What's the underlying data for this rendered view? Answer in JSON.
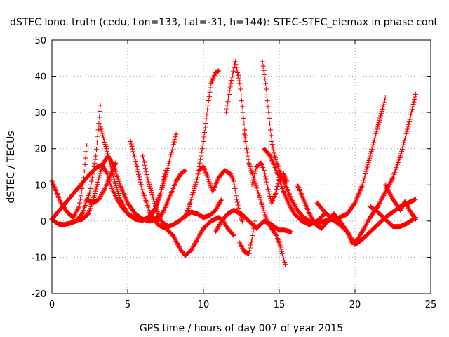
{
  "chart_data": {
    "type": "scatter",
    "title": "dSTEC Iono. truth (cedu, Lon=133, Lat=-31, h=144): STEC-STEC_elemax in phase cont",
    "xlabel": "GPS time / hours of day 007 of year 2015",
    "ylabel": "dSTEC  / TECUs",
    "xlim": [
      0,
      25
    ],
    "ylim": [
      -20,
      50
    ],
    "xticks": [
      0,
      5,
      10,
      15,
      20,
      25
    ],
    "yticks": [
      -20,
      -10,
      0,
      10,
      20,
      30,
      40,
      50
    ],
    "grid": true,
    "marker": "+",
    "color": "#ff0000",
    "series": [
      {
        "x": [
          0,
          0.3,
          0.6,
          1.0,
          1.4,
          1.8,
          2.1,
          2.3
        ],
        "y": [
          11,
          8,
          5,
          2.5,
          1,
          4,
          12,
          21
        ]
      },
      {
        "x": [
          0,
          0.4,
          0.8,
          1.2,
          1.6,
          2.0,
          2.5,
          2.9,
          3.1,
          3.2
        ],
        "y": [
          0.5,
          -0.8,
          -1,
          -0.6,
          0,
          2,
          8,
          18,
          27,
          32
        ]
      },
      {
        "x": [
          0,
          0.5,
          1.0,
          1.5,
          2.0,
          2.5,
          3.0,
          3.3,
          3.6,
          3.8,
          4.0,
          4.3,
          4.6,
          5.0,
          5.5,
          6.0,
          6.5,
          6.8,
          7.2,
          7.6,
          7.9,
          8.2
        ],
        "y": [
          0.5,
          3,
          5.5,
          8,
          10.5,
          13,
          15,
          15.5,
          13.5,
          11,
          8.5,
          6,
          4,
          2,
          0.5,
          0.2,
          1.5,
          3.5,
          8,
          14,
          19,
          24
        ]
      },
      {
        "x": [
          1.6,
          2.0,
          2.4,
          2.8,
          3.1,
          3.4,
          3.7,
          4.0,
          4.5,
          5.0,
          5.5,
          6.0,
          6.5,
          6.8,
          7.0
        ],
        "y": [
          0.3,
          0.5,
          2,
          7,
          12,
          16,
          18,
          16,
          10,
          5,
          2,
          0.5,
          0,
          0.5,
          1.5
        ]
      },
      {
        "x": [
          2.3,
          2.7,
          3.1,
          3.5,
          3.9,
          4.2
        ],
        "y": [
          6,
          5,
          6,
          9,
          13,
          16
        ]
      },
      {
        "x": [
          3.2,
          3.6,
          4.0,
          4.5,
          5.0,
          5.6,
          6.0,
          6.4,
          6.8,
          7.2,
          7.5
        ],
        "y": [
          26,
          20,
          13,
          6,
          2,
          0.5,
          0.3,
          0.8,
          3,
          8,
          14
        ]
      },
      {
        "x": [
          5.2,
          5.6,
          6.0,
          6.5,
          7.0,
          7.5,
          8.0,
          8.5,
          8.8,
          9.2,
          9.6,
          10.0,
          10.5,
          11.0,
          11.3,
          11.6,
          12.0
        ],
        "y": [
          22,
          15,
          8,
          2,
          -1,
          -2,
          -4,
          -8,
          -9.5,
          -8,
          -5,
          -2,
          0,
          1,
          0,
          -2,
          -4
        ]
      },
      {
        "x": [
          6.0,
          6.3,
          6.7,
          7.0,
          7.3,
          7.7,
          8.0,
          8.4,
          8.8,
          9.2,
          9.6,
          10.0,
          10.4,
          10.8,
          11.2
        ],
        "y": [
          18,
          12,
          6,
          2,
          -0.5,
          -1.5,
          -1,
          0,
          1.5,
          2.5,
          2,
          1,
          1.5,
          3,
          6
        ]
      },
      {
        "x": [
          7.0,
          7.4,
          7.8,
          8.2,
          8.5,
          8.8
        ],
        "y": [
          0,
          3,
          7,
          11,
          13,
          14
        ]
      },
      {
        "x": [
          8.8,
          9.2,
          9.6,
          10.0,
          10.3,
          10.5,
          10.8,
          11.0
        ],
        "y": [
          1,
          6,
          12,
          22,
          32,
          38,
          41,
          41.5
        ]
      },
      {
        "x": [
          9.7,
          10.0,
          10.3,
          10.6,
          11.0,
          11.4,
          11.8,
          12.0,
          12.2,
          12.4,
          12.6
        ],
        "y": [
          14,
          15,
          12,
          8,
          12,
          14,
          13,
          11,
          6,
          2,
          -0.5
        ]
      },
      {
        "x": [
          10.8,
          11.2,
          11.6,
          12.0,
          12.5,
          13.0,
          13.5,
          14.0,
          14.5,
          15.0,
          15.3,
          15.8
        ],
        "y": [
          -3,
          0,
          2,
          3,
          2,
          0,
          -2,
          0,
          -1,
          -2.5,
          -2.5,
          -3
        ]
      },
      {
        "x": [
          11.5,
          11.8,
          12.1,
          12.4,
          12.6,
          12.8
        ],
        "y": [
          30,
          38,
          44,
          38,
          30,
          22
        ]
      },
      {
        "x": [
          12.4,
          12.7,
          13.0,
          13.2,
          13.4
        ],
        "y": [
          -6,
          -8.5,
          -9,
          -5,
          0
        ]
      },
      {
        "x": [
          12.7,
          13.0,
          13.3,
          13.6,
          13.9,
          14.2,
          14.5,
          14.8,
          15.0,
          15.2,
          15.4
        ],
        "y": [
          24,
          16,
          12,
          8,
          4,
          0,
          -2,
          -4,
          -6,
          -9,
          -12
        ]
      },
      {
        "x": [
          13.2,
          13.5,
          13.8,
          14.0,
          14.2,
          14.5,
          14.8,
          15.0,
          15.3,
          15.5
        ],
        "y": [
          10,
          15,
          16,
          14,
          10,
          5,
          8,
          12,
          13,
          11
        ]
      },
      {
        "x": [
          13.9,
          14.1,
          14.3,
          14.5,
          14.7,
          15.0,
          15.4,
          15.8,
          16.2,
          16.6,
          17.0,
          17.5,
          18.0,
          18.5,
          19.0,
          19.5,
          20.0,
          20.5,
          21.0,
          21.5,
          22.0
        ],
        "y": [
          44,
          38,
          30,
          22,
          18,
          14,
          10,
          6,
          3,
          1,
          0,
          -0.5,
          0,
          0.5,
          1,
          2,
          5,
          10,
          18,
          26,
          34
        ]
      },
      {
        "x": [
          14.0,
          14.4,
          14.8,
          15.2,
          15.6,
          16.0,
          16.5,
          17.0,
          17.5,
          18.0
        ],
        "y": [
          20,
          18,
          14,
          9,
          5,
          2,
          0,
          -1,
          0,
          2
        ]
      },
      {
        "x": [
          16.2,
          16.6,
          17.0,
          17.4,
          17.8,
          18.2,
          18.6,
          19.0,
          19.5,
          19.8,
          20.2,
          20.6,
          21.0,
          21.5,
          22.0,
          22.5,
          23.0,
          23.5,
          24.0
        ],
        "y": [
          10,
          6,
          2,
          -1,
          -2,
          0,
          2,
          0,
          -3,
          -6,
          -5,
          -2,
          1,
          4,
          8,
          12,
          18,
          26,
          35
        ]
      },
      {
        "x": [
          17.5,
          18.0,
          18.5,
          19.0,
          19.5,
          20.0,
          20.5,
          21.0,
          21.5,
          22.0,
          22.5,
          23.0,
          23.5,
          24.0
        ],
        "y": [
          5,
          2.5,
          0.5,
          -1,
          -3,
          -6.5,
          -5,
          -3,
          -1,
          1,
          2.5,
          4,
          5,
          6
        ]
      },
      {
        "x": [
          21.0,
          21.5,
          22.0,
          22.5,
          23.0,
          23.5,
          24.0
        ],
        "y": [
          4,
          2.5,
          0.5,
          -1.5,
          -1.5,
          -0.5,
          1
        ]
      },
      {
        "x": [
          22.0,
          22.5,
          23.0,
          23.3,
          23.6,
          24.0
        ],
        "y": [
          10,
          6,
          3,
          5.5,
          3,
          0.5
        ]
      }
    ]
  }
}
